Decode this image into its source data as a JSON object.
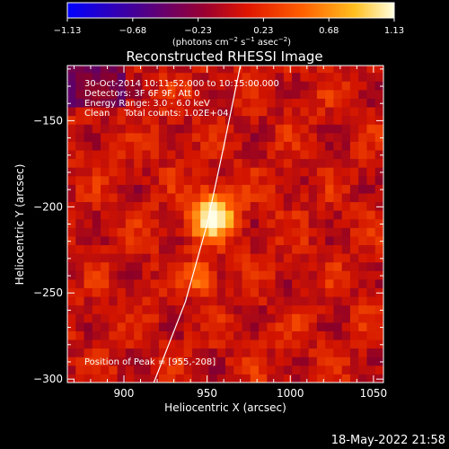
{
  "chart_data": {
    "type": "heatmap",
    "title": "Reconstructed RHESSI Image",
    "xlabel": "Heliocentric X (arcsec)",
    "ylabel": "Heliocentric Y (arcsec)",
    "xlim": [
      866,
      1056
    ],
    "ylim": [
      -302,
      -118
    ],
    "x_ticks": [
      {
        "value": 900,
        "label": "900"
      },
      {
        "value": 950,
        "label": "950"
      },
      {
        "value": 1000,
        "label": "1000"
      },
      {
        "value": 1050,
        "label": "1050"
      }
    ],
    "y_ticks": [
      {
        "value": -150,
        "label": "−150"
      },
      {
        "value": -200,
        "label": "−200"
      },
      {
        "value": -250,
        "label": "−250"
      },
      {
        "value": -300,
        "label": "−300"
      }
    ],
    "colorbar": {
      "min": -1.13,
      "max": 1.13,
      "tick_labels": [
        "−1.13",
        "−0.68",
        "−0.23",
        "0.23",
        "0.68",
        "1.13"
      ],
      "unit_label": "(photons cm",
      "unit_exp1": "−2",
      "unit_mid": " s",
      "unit_exp2": "−1",
      "unit_mid2": " asec",
      "unit_exp3": "−2",
      "unit_end": ")"
    },
    "annotations": [
      "30-Oct-2014 10:11:52.000 to 10:15:00.000",
      "Detectors: 3F 6F 9F, Att 0",
      "Energy Range: 3.0 - 6.0 keV",
      "Clean     Total counts: 1.02E+04"
    ],
    "peak_label": "Position of Peak = [955,-208]",
    "peak": [
      955,
      -208
    ],
    "sources": [
      {
        "x": 953,
        "y": -205,
        "sigma": 9,
        "intensity": 1.13
      },
      {
        "x": 947,
        "y": -241,
        "sigma": 6,
        "intensity": 0.6
      }
    ],
    "limb_curve": [
      [
        970,
        -118
      ],
      [
        960,
        -165
      ],
      [
        950,
        -210
      ],
      [
        937,
        -255
      ],
      [
        918,
        -302
      ]
    ],
    "colors": {
      "background": "#000000",
      "limb": "#ffffff",
      "colormap": [
        "#0000ff",
        "#400080",
        "#a00020",
        "#ff2000",
        "#ff8000",
        "#ffff80",
        "#ffffff"
      ]
    }
  },
  "footer": {
    "timestamp": "18-May-2022 21:58"
  }
}
